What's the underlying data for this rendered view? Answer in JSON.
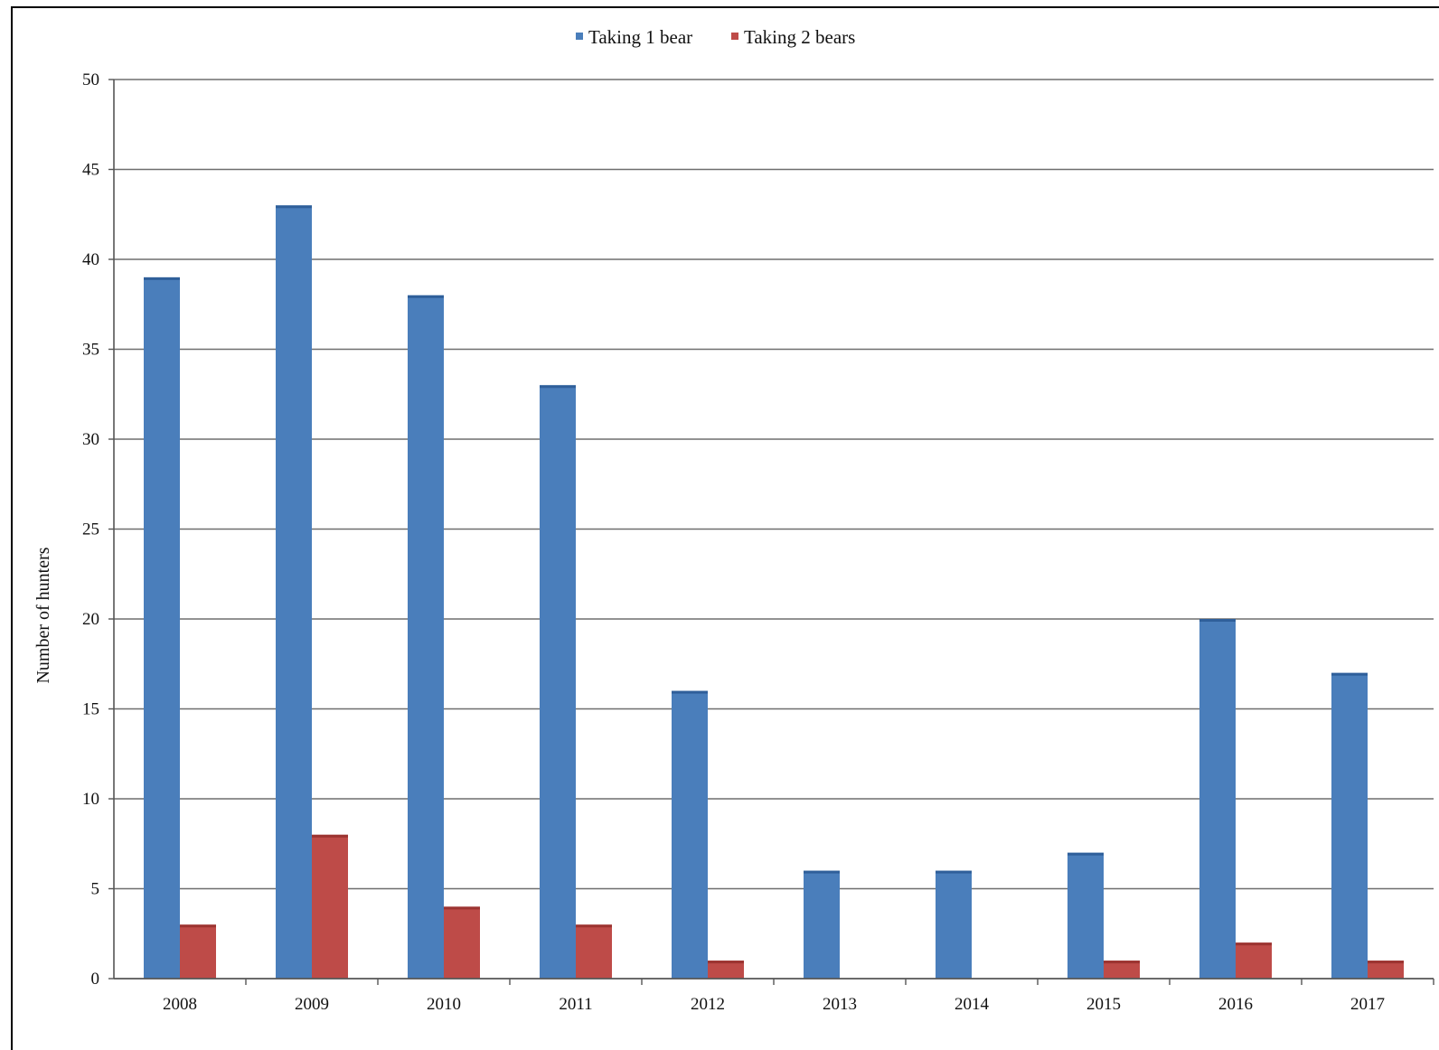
{
  "chart_data": {
    "type": "bar",
    "title": "",
    "xlabel": "",
    "ylabel": "Number of hunters",
    "ylim": [
      0,
      50
    ],
    "yticks": [
      0,
      5,
      10,
      15,
      20,
      25,
      30,
      35,
      40,
      45,
      50
    ],
    "grid": true,
    "legend_position": "top-center",
    "categories": [
      "2008",
      "2009",
      "2010",
      "2011",
      "2012",
      "2013",
      "2014",
      "2015",
      "2016",
      "2017"
    ],
    "series": [
      {
        "name": "Taking 1 bear",
        "color": "#4a7ebb",
        "values": [
          39,
          43,
          38,
          33,
          16,
          6,
          6,
          7,
          20,
          17
        ]
      },
      {
        "name": "Taking 2 bears",
        "color": "#be4b48",
        "values": [
          3,
          8,
          4,
          3,
          1,
          0,
          0,
          1,
          2,
          1
        ]
      }
    ]
  }
}
